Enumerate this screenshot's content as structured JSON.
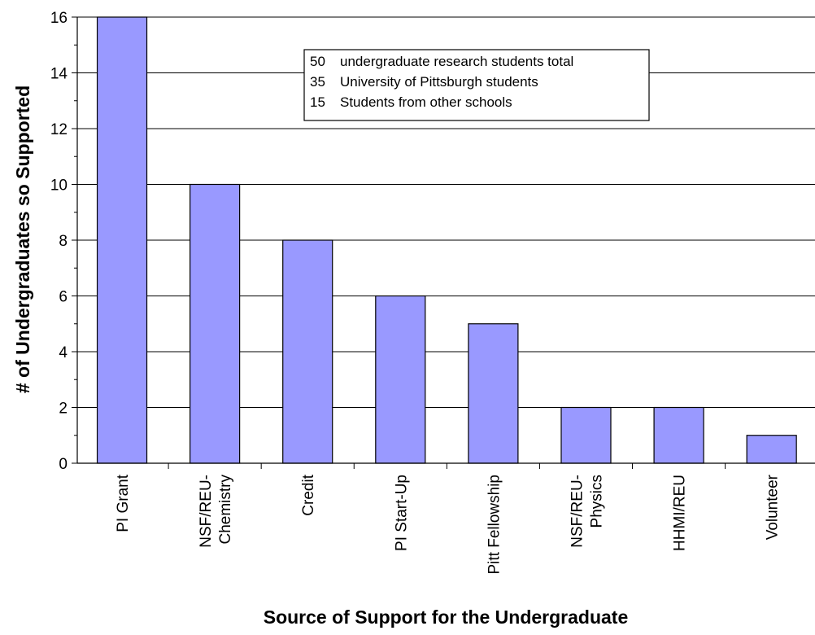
{
  "chart_data": {
    "type": "bar",
    "categories": [
      [
        "PI Grant"
      ],
      [
        "NSF/REU-",
        "Chemistry"
      ],
      [
        "Credit"
      ],
      [
        "PI Start-Up"
      ],
      [
        "Pitt Fellowship"
      ],
      [
        "NSF/REU-",
        "Physics"
      ],
      [
        "HHMI/REU"
      ],
      [
        "Volunteer"
      ]
    ],
    "values": [
      16,
      10,
      8,
      6,
      5,
      2,
      2,
      1
    ],
    "xlabel": "Source of Support for the Undergraduate",
    "ylabel": "# of Undergraduates so Supported",
    "ylim": [
      0,
      16
    ],
    "yticks": [
      0,
      2,
      4,
      6,
      8,
      10,
      12,
      14,
      16
    ],
    "grid": true,
    "bar_color": "#9999ff",
    "annotation": [
      {
        "count": "50",
        "text": "undergraduate research students total"
      },
      {
        "count": "35",
        "text": "University of Pittsburgh students"
      },
      {
        "count": "15",
        "text": "Students from other schools"
      }
    ]
  }
}
